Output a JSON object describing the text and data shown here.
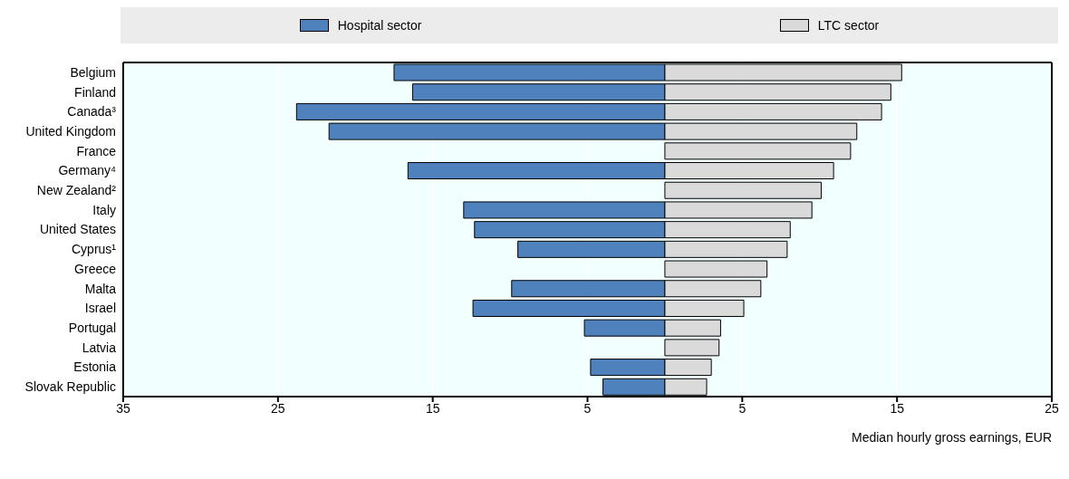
{
  "chart_data": {
    "type": "bar",
    "orientation": "horizontal",
    "stacked": true,
    "categories": [
      "Belgium",
      "Finland",
      "Canada³",
      "United Kingdom",
      "France",
      "Germany⁴",
      "New Zealand²",
      "Italy",
      "United States",
      "Cyprus¹",
      "Greece",
      "Malta",
      "Israel",
      "Portugal",
      "Latvia",
      "Estonia",
      "Slovak Republic"
    ],
    "series": [
      {
        "name": "Hospital sector",
        "color": "#4f81bd",
        "values": [
          -17.5,
          -16.3,
          -23.8,
          -21.7,
          null,
          -16.6,
          null,
          -13.0,
          -12.3,
          -9.5,
          null,
          -9.9,
          -12.4,
          -5.2,
          null,
          -4.8,
          -4.0
        ]
      },
      {
        "name": "LTC sector",
        "color": "#dadada",
        "values": [
          15.3,
          14.6,
          14.0,
          12.4,
          12.0,
          10.9,
          10.1,
          9.5,
          8.1,
          7.9,
          6.6,
          6.2,
          5.1,
          3.6,
          3.5,
          3.0,
          2.7
        ]
      }
    ],
    "xlim": [
      -35,
      25
    ],
    "xticks": [
      {
        "value": -35,
        "label": "35"
      },
      {
        "value": -25,
        "label": "25"
      },
      {
        "value": -15,
        "label": "15"
      },
      {
        "value": -5,
        "label": "5"
      },
      5,
      15,
      25
    ],
    "xlabel": "Median hourly gross earnings, EUR",
    "grid": "x",
    "legend": "top"
  }
}
